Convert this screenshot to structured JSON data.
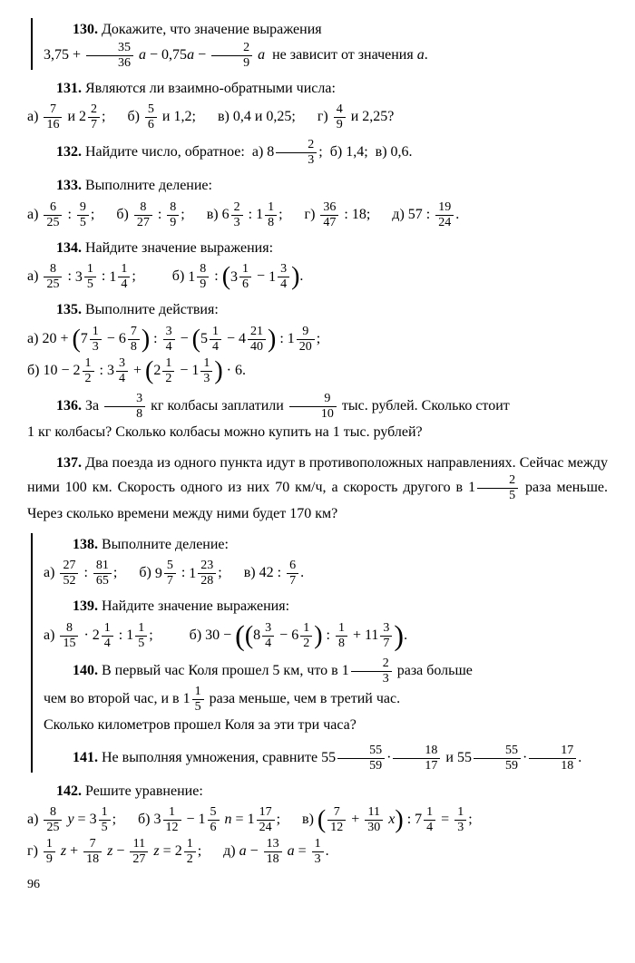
{
  "p130": {
    "num": "130.",
    "text1": "Докажите, что значение выражения",
    "text2": "не зависит от значения"
  },
  "p131": {
    "num": "131.",
    "text": "Являются ли взаимно-обратными числа:",
    "a": "а)",
    "a_and": "и",
    "b": "б)",
    "b_and": "и 1,2;",
    "c": "в) 0,4 и 0,25;",
    "d": "г)",
    "d_and": "и 2,25?"
  },
  "p132": {
    "num": "132.",
    "text": "Найдите число, обратное:",
    "a": "а)",
    "b": "б) 1,4;",
    "c": "в) 0,6."
  },
  "p133": {
    "num": "133.",
    "text": "Выполните деление:",
    "a": "а)",
    "b": "б)",
    "c": "в)",
    "d": "г)",
    "e": "д)"
  },
  "p134": {
    "num": "134.",
    "text": "Найдите значение выражения:",
    "a": "а)",
    "b": "б)"
  },
  "p135": {
    "num": "135.",
    "text": "Выполните действия:",
    "a": "а)",
    "b": "б)"
  },
  "p136": {
    "num": "136.",
    "t1": "За",
    "t2": "кг колбасы заплатили",
    "t3": "тыс. рублей. Сколько стоит",
    "t4": "1 кг колбасы? Сколько колбасы можно купить на 1 тыс. рублей?"
  },
  "p137": {
    "num": "137.",
    "t1": "Два поезда из одного пункта идут в противоположных направлениях. Сейчас между ними 100 км. Скорость одного из них 70 км/ч, а скорость другого в",
    "t2": "раза меньше. Через сколько времени между ними будет 170 км?"
  },
  "p138": {
    "num": "138.",
    "text": "Выполните деление:",
    "a": "а)",
    "b": "б)",
    "c": "в)"
  },
  "p139": {
    "num": "139.",
    "text": "Найдите значение выражения:",
    "a": "а)",
    "b": "б)"
  },
  "p140": {
    "num": "140.",
    "t1": "В первый час Коля прошел 5 км, что в",
    "t2": "раза больше",
    "t3": "чем во второй час, и в",
    "t4": "раза меньше, чем в третий час.",
    "t5": "Сколько километров прошел Коля за эти три часа?"
  },
  "p141": {
    "num": "141.",
    "t1": "Не выполняя умножения, сравните",
    "t2": "и"
  },
  "p142": {
    "num": "142.",
    "text": "Решите уравнение:",
    "a": "а)",
    "b": "б)",
    "c": "в)",
    "d": "г)",
    "e": "д)"
  },
  "pagenum": "96"
}
